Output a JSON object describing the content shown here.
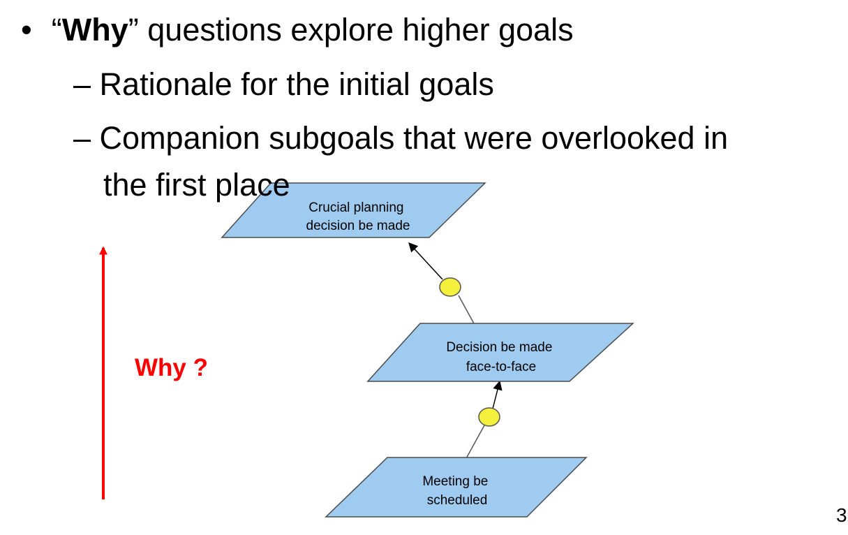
{
  "bullets": {
    "marker": "•",
    "main": {
      "open_quote": "“",
      "emphasis": "Why",
      "close_quote": "”",
      "rest": " questions explore higher goals"
    },
    "sub_marker": "–",
    "sub_items": [
      "Rationale for the initial goals",
      "Companion subgoals that were overlooked in",
      "the first place"
    ]
  },
  "why_arrow": {
    "label": "Why ?",
    "color": "#ff0000"
  },
  "goal_model": {
    "fill_color": "#9fcbf0",
    "stroke_color": "#4a4a4a",
    "link_color": "#f5f03c",
    "goals": [
      {
        "id": "crucial",
        "lines": [
          "Crucial planning",
          "decision be made"
        ]
      },
      {
        "id": "face",
        "lines": [
          "Decision be made",
          "face-to-face"
        ]
      },
      {
        "id": "meeting",
        "lines": [
          "Meeting be",
          "scheduled"
        ]
      }
    ]
  },
  "page_number": "3"
}
